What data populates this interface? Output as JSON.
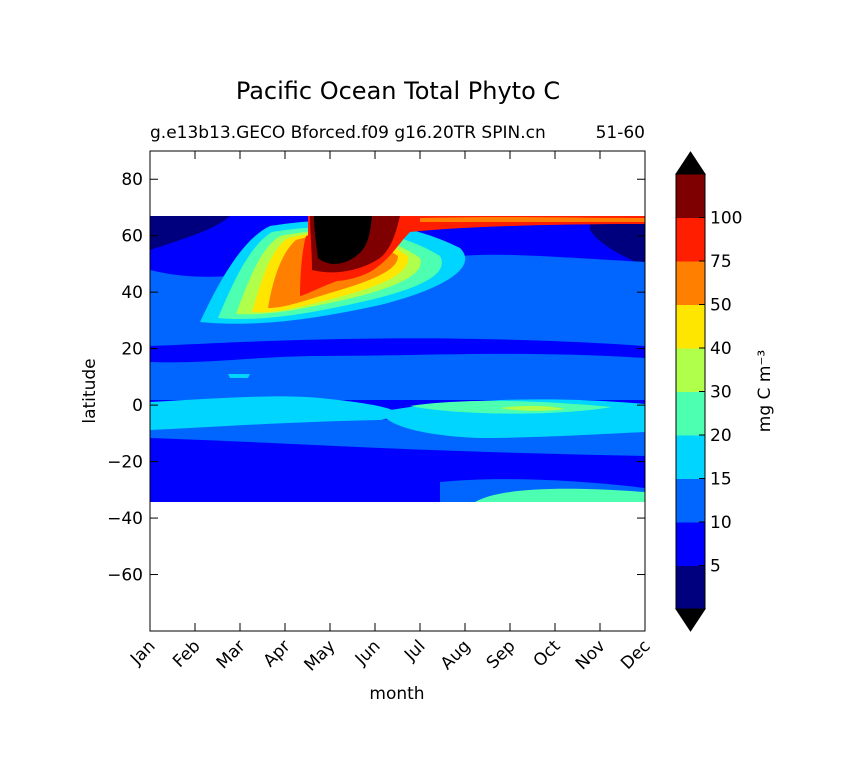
{
  "chart_data": {
    "type": "heatmap",
    "title": "Pacific Ocean Total Phyto C",
    "subtitle_left": "g.e13b13.GECO Bforced.f09 g16.20TR SPIN.cn",
    "subtitle_right": "51-60",
    "xlabel": "month",
    "ylabel": "latitude",
    "x_ticks": [
      "Jan",
      "Feb",
      "Mar",
      "Apr",
      "May",
      "Jun",
      "Jul",
      "Aug",
      "Sep",
      "Oct",
      "Nov",
      "Dec"
    ],
    "xlim": [
      0,
      11
    ],
    "ylim": [
      -80,
      90
    ],
    "y_ticks": [
      80,
      60,
      40,
      20,
      0,
      -20,
      -40,
      -60
    ],
    "y_tick_labels": [
      "80",
      "60",
      "40",
      "20",
      "0",
      "−20",
      "−40",
      "−60"
    ],
    "data_lat_range": [
      -34,
      67
    ],
    "colorbar": {
      "label": "mg C m⁻³",
      "levels": [
        0,
        5,
        10,
        15,
        20,
        30,
        40,
        50,
        75,
        100,
        125
      ],
      "tick_labels": [
        "5",
        "10",
        "15",
        "20",
        "30",
        "40",
        "50",
        "75",
        "100"
      ],
      "colors": [
        "#00007f",
        "#0000ff",
        "#0066ff",
        "#00d5ff",
        "#4dffb0",
        "#b0ff4a",
        "#ffe600",
        "#ff7f00",
        "#ff1e00",
        "#7f0000"
      ],
      "extend": "both",
      "under_color": "#000000",
      "over_color": "#000000"
    },
    "grid": false,
    "colors": {
      "background": "#0000ff",
      "max_region": "#000000"
    }
  }
}
